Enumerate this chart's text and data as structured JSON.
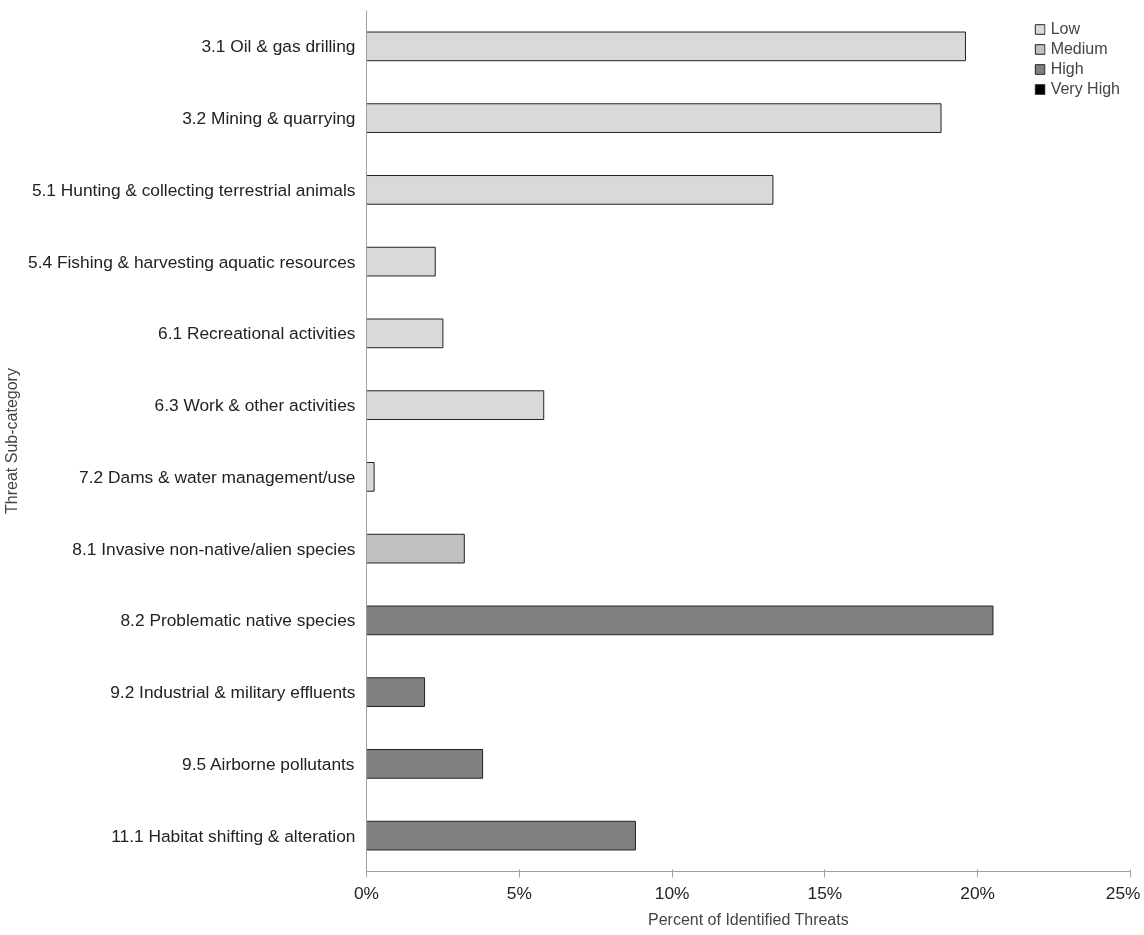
{
  "chart_data": {
    "type": "bar",
    "orientation": "horizontal",
    "stacked": true,
    "xlabel": "Percent of Identified Threats",
    "ylabel": "Threat Sub-category",
    "categories": [
      "3.1 Oil & gas drilling",
      "3.2 Mining & quarrying",
      "5.1 Hunting & collecting terrestrial animals",
      "5.4 Fishing & harvesting aquatic resources",
      "6.1 Recreational activities",
      "6.3 Work & other activities",
      "7.2 Dams & water management/use",
      "8.1 Invasive non-native/alien species",
      "8.2 Problematic native species",
      "9.2 Industrial & military effluents",
      "9.5 Airborne pollutants",
      "11.1 Habitat shifting & alteration"
    ],
    "series": [
      {
        "name": "Low",
        "color": "#d9d9d9",
        "values": [
          19.6,
          18.8,
          13.3,
          2.25,
          2.5,
          5.8,
          0.25,
          null,
          null,
          null,
          null,
          null
        ]
      },
      {
        "name": "Medium",
        "color": "#c0c0c0",
        "values": [
          null,
          null,
          null,
          null,
          null,
          null,
          null,
          3.2,
          null,
          null,
          null,
          null
        ]
      },
      {
        "name": "High",
        "color": "#808080",
        "values": [
          null,
          null,
          null,
          null,
          null,
          null,
          null,
          null,
          20.5,
          1.9,
          3.8,
          8.8
        ]
      },
      {
        "name": "Very High",
        "color": "#000000",
        "values": [
          null,
          null,
          null,
          null,
          null,
          null,
          null,
          null,
          null,
          null,
          null,
          null
        ]
      }
    ],
    "xlim": [
      0,
      25
    ],
    "xticks": [
      {
        "value": 0,
        "label": "0%"
      },
      {
        "value": 5,
        "label": "5%"
      },
      {
        "value": 10,
        "label": "10%"
      },
      {
        "value": 15,
        "label": "15%"
      },
      {
        "value": 20,
        "label": "20%"
      },
      {
        "value": 25,
        "label": "25%"
      }
    ],
    "grid": false,
    "legend": "top right"
  }
}
